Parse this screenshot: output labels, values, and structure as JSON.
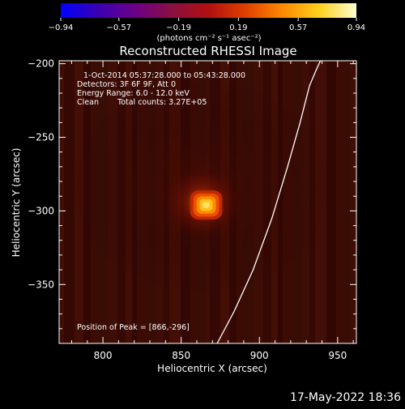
{
  "chart_data": {
    "type": "heatmap",
    "title": "Reconstructed RHESSI Image",
    "xlabel": "Heliocentric X (arcsec)",
    "ylabel": "Heliocentric Y (arcsec)",
    "xlim": [
      772,
      962
    ],
    "ylim": [
      -390,
      -198
    ],
    "xticks": [
      800,
      850,
      900,
      950
    ],
    "yticks": [
      -200,
      -250,
      -300,
      -350
    ],
    "xtick_labels": [
      "800",
      "850",
      "900",
      "950"
    ],
    "ytick_labels": [
      "−200",
      "−250",
      "−300",
      "−350"
    ],
    "colorbar": {
      "min": -0.94,
      "max": 0.94,
      "ticks": [
        -0.94,
        -0.57,
        -0.19,
        0.19,
        0.57,
        0.94
      ],
      "tick_labels": [
        "−0.94",
        "−0.57",
        "−0.19",
        "0.19",
        "0.57",
        "0.94"
      ],
      "label": "(photons cm⁻² s⁻¹ asec⁻²)",
      "colors": [
        "#0000ff",
        "#3a00b0",
        "#6a0088",
        "#8a1040",
        "#b01010",
        "#e04000",
        "#ff8800",
        "#ffd020",
        "#ffffd0"
      ]
    },
    "annotations": {
      "time_range": "1-Oct-2014 05:37:28.000 to 05:43:28.000",
      "detectors": "Detectors: 3F 6F 9F, Att 0",
      "energy_range": "Energy Range: 6.0 - 12.0 keV",
      "clean": "Clean",
      "total_counts": "Total counts: 3.27E+05",
      "peak_position": "Position of Peak = [866,-296]"
    },
    "peak": {
      "x": 866,
      "y": -296
    },
    "limb_curve": {
      "x": [
        873,
        884,
        896,
        908,
        918,
        926,
        932,
        936,
        939
      ],
      "y": [
        -390,
        -368,
        -340,
        -305,
        -270,
        -240,
        -215,
        -205,
        -198
      ]
    },
    "footer": "17-May-2022 18:36"
  }
}
